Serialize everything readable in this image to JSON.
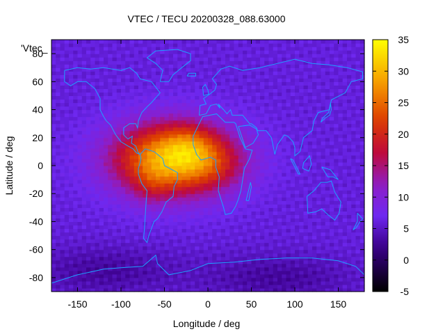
{
  "chart_data": {
    "type": "heatmap",
    "title": "VTEC / TECU 20200328_088.63000",
    "xlabel": "Longitude / deg",
    "ylabel": "Latitude / deg",
    "series_label": "'Vtec_",
    "xlim": [
      -180,
      180
    ],
    "ylim": [
      -90,
      90
    ],
    "x_ticks": [
      -150,
      -100,
      -50,
      0,
      50,
      100,
      150
    ],
    "y_ticks": [
      -80,
      -60,
      -40,
      -20,
      0,
      20,
      40,
      60,
      80
    ],
    "colorbar": {
      "range": [
        -5,
        35
      ],
      "ticks": [
        -5,
        0,
        5,
        10,
        15,
        20,
        25,
        30,
        35
      ],
      "palette": "gnuplot-pm3d-black-purple-red-orange-yellow"
    },
    "grid_resolution": {
      "lon_step": 5,
      "lat_step": 2.5
    },
    "field_model": {
      "background_tecu": 6,
      "anomaly_peaks": [
        {
          "lon": -40,
          "lat": 5,
          "peak_tecu": 25,
          "lon_sigma": 48,
          "lat_sigma": 18
        },
        {
          "lon": -20,
          "lat": 15,
          "peak_tecu": 4,
          "lon_sigma": 20,
          "lat_sigma": 10
        },
        {
          "lon": -65,
          "lat": -15,
          "peak_tecu": 3,
          "lon_sigma": 15,
          "lat_sigma": 10
        },
        {
          "lon": 10,
          "lat": 0,
          "peak_tecu": 3,
          "lon_sigma": 25,
          "lat_sigma": 12
        }
      ],
      "polar_depressions": [
        {
          "lat": -75,
          "lon": -120,
          "depth_tecu": 3
        },
        {
          "lat": -80,
          "lon": 80,
          "depth_tecu": 3
        }
      ]
    },
    "coastline_color": "#1ea0ff",
    "coastlines": [
      {
        "name": "north-america",
        "points": [
          [
            -165,
            68
          ],
          [
            -150,
            70
          ],
          [
            -135,
            69
          ],
          [
            -120,
            70
          ],
          [
            -100,
            68
          ],
          [
            -90,
            70
          ],
          [
            -82,
            66
          ],
          [
            -78,
            62
          ],
          [
            -65,
            60
          ],
          [
            -55,
            52
          ],
          [
            -65,
            45
          ],
          [
            -70,
            42
          ],
          [
            -76,
            38
          ],
          [
            -80,
            32
          ],
          [
            -81,
            27
          ],
          [
            -83,
            30
          ],
          [
            -90,
            30
          ],
          [
            -97,
            27
          ],
          [
            -97,
            22
          ],
          [
            -92,
            19
          ],
          [
            -87,
            21
          ],
          [
            -88,
            16
          ],
          [
            -83,
            14
          ],
          [
            -80,
            9
          ],
          [
            -78,
            8
          ],
          [
            -82,
            9
          ],
          [
            -86,
            12
          ],
          [
            -92,
            14
          ],
          [
            -100,
            17
          ],
          [
            -106,
            22
          ],
          [
            -112,
            29
          ],
          [
            -117,
            32
          ],
          [
            -120,
            35
          ],
          [
            -124,
            40
          ],
          [
            -124,
            48
          ],
          [
            -130,
            55
          ],
          [
            -140,
            60
          ],
          [
            -150,
            60
          ],
          [
            -158,
            57
          ],
          [
            -165,
            60
          ],
          [
            -165,
            68
          ]
        ]
      },
      {
        "name": "south-america",
        "points": [
          [
            -78,
            8
          ],
          [
            -72,
            12
          ],
          [
            -62,
            10
          ],
          [
            -52,
            5
          ],
          [
            -50,
            0
          ],
          [
            -44,
            -2
          ],
          [
            -35,
            -5
          ],
          [
            -35,
            -10
          ],
          [
            -39,
            -15
          ],
          [
            -40,
            -22
          ],
          [
            -48,
            -26
          ],
          [
            -53,
            -33
          ],
          [
            -58,
            -38
          ],
          [
            -62,
            -40
          ],
          [
            -65,
            -45
          ],
          [
            -68,
            -50
          ],
          [
            -70,
            -55
          ],
          [
            -74,
            -52
          ],
          [
            -73,
            -45
          ],
          [
            -72,
            -35
          ],
          [
            -71,
            -25
          ],
          [
            -70,
            -18
          ],
          [
            -76,
            -13
          ],
          [
            -80,
            -6
          ],
          [
            -80,
            -2
          ],
          [
            -78,
            2
          ],
          [
            -77,
            5
          ],
          [
            -78,
            8
          ]
        ]
      },
      {
        "name": "greenland",
        "points": [
          [
            -55,
            60
          ],
          [
            -45,
            60
          ],
          [
            -40,
            65
          ],
          [
            -30,
            70
          ],
          [
            -20,
            75
          ],
          [
            -20,
            80
          ],
          [
            -35,
            83
          ],
          [
            -60,
            82
          ],
          [
            -70,
            77
          ],
          [
            -60,
            73
          ],
          [
            -52,
            68
          ],
          [
            -55,
            60
          ]
        ]
      },
      {
        "name": "eurasia",
        "points": [
          [
            -10,
            36
          ],
          [
            -9,
            43
          ],
          [
            -2,
            44
          ],
          [
            -5,
            48
          ],
          [
            2,
            51
          ],
          [
            8,
            54
          ],
          [
            10,
            58
          ],
          [
            5,
            62
          ],
          [
            15,
            69
          ],
          [
            25,
            71
          ],
          [
            40,
            68
          ],
          [
            60,
            70
          ],
          [
            80,
            73
          ],
          [
            100,
            76
          ],
          [
            120,
            73
          ],
          [
            140,
            72
          ],
          [
            160,
            70
          ],
          [
            178,
            67
          ],
          [
            178,
            62
          ],
          [
            165,
            60
          ],
          [
            158,
            52
          ],
          [
            142,
            47
          ],
          [
            140,
            40
          ],
          [
            127,
            38
          ],
          [
            122,
            32
          ],
          [
            120,
            25
          ],
          [
            110,
            20
          ],
          [
            106,
            10
          ],
          [
            100,
            7
          ],
          [
            100,
            13
          ],
          [
            98,
            17
          ],
          [
            92,
            21
          ],
          [
            88,
            22
          ],
          [
            80,
            15
          ],
          [
            77,
            8
          ],
          [
            73,
            20
          ],
          [
            67,
            25
          ],
          [
            57,
            25
          ],
          [
            56,
            27
          ],
          [
            50,
            30
          ],
          [
            48,
            30
          ],
          [
            40,
            36
          ],
          [
            35,
            36
          ],
          [
            28,
            36
          ],
          [
            26,
            40
          ],
          [
            22,
            37
          ],
          [
            18,
            40
          ],
          [
            12,
            44
          ],
          [
            14,
            41
          ],
          [
            10,
            44
          ],
          [
            3,
            43
          ],
          [
            -2,
            37
          ],
          [
            -10,
            36
          ]
        ]
      },
      {
        "name": "arabia",
        "points": [
          [
            35,
            28
          ],
          [
            43,
            13
          ],
          [
            52,
            16
          ],
          [
            58,
            22
          ],
          [
            56,
            26
          ],
          [
            48,
            29
          ],
          [
            35,
            28
          ]
        ]
      },
      {
        "name": "africa",
        "points": [
          [
            -17,
            15
          ],
          [
            -17,
            21
          ],
          [
            -10,
            30
          ],
          [
            -6,
            35
          ],
          [
            10,
            37
          ],
          [
            20,
            31
          ],
          [
            30,
            31
          ],
          [
            32,
            30
          ],
          [
            37,
            20
          ],
          [
            43,
            12
          ],
          [
            51,
            11
          ],
          [
            48,
            5
          ],
          [
            42,
            -2
          ],
          [
            40,
            -10
          ],
          [
            38,
            -18
          ],
          [
            35,
            -24
          ],
          [
            32,
            -29
          ],
          [
            27,
            -34
          ],
          [
            20,
            -35
          ],
          [
            18,
            -30
          ],
          [
            12,
            -18
          ],
          [
            13,
            -8
          ],
          [
            9,
            -1
          ],
          [
            9,
            4
          ],
          [
            3,
            6
          ],
          [
            -8,
            4
          ],
          [
            -13,
            8
          ],
          [
            -17,
            15
          ]
        ]
      },
      {
        "name": "madagascar",
        "points": [
          [
            44,
            -25
          ],
          [
            49,
            -12
          ],
          [
            50,
            -15
          ],
          [
            47,
            -25
          ],
          [
            44,
            -25
          ]
        ]
      },
      {
        "name": "australia",
        "points": [
          [
            114,
            -22
          ],
          [
            122,
            -18
          ],
          [
            130,
            -12
          ],
          [
            137,
            -12
          ],
          [
            142,
            -11
          ],
          [
            146,
            -19
          ],
          [
            153,
            -26
          ],
          [
            151,
            -34
          ],
          [
            146,
            -39
          ],
          [
            138,
            -35
          ],
          [
            131,
            -31
          ],
          [
            124,
            -33
          ],
          [
            115,
            -34
          ],
          [
            114,
            -22
          ]
        ]
      },
      {
        "name": "new-zealand",
        "points": [
          [
            172,
            -34
          ],
          [
            178,
            -38
          ],
          [
            174,
            -41
          ],
          [
            171,
            -44
          ],
          [
            167,
            -46
          ],
          [
            172,
            -40
          ],
          [
            172,
            -34
          ]
        ]
      },
      {
        "name": "uk",
        "points": [
          [
            -5,
            50
          ],
          [
            1,
            51
          ],
          [
            0,
            54
          ],
          [
            -3,
            58
          ],
          [
            -6,
            56
          ],
          [
            -5,
            50
          ]
        ]
      },
      {
        "name": "japan",
        "points": [
          [
            130,
            31
          ],
          [
            135,
            34
          ],
          [
            140,
            36
          ],
          [
            142,
            40
          ],
          [
            141,
            45
          ],
          [
            139,
            38
          ],
          [
            132,
            34
          ],
          [
            130,
            31
          ]
        ]
      },
      {
        "name": "borneo",
        "points": [
          [
            109,
            -2
          ],
          [
            110,
            2
          ],
          [
            117,
            7
          ],
          [
            119,
            1
          ],
          [
            116,
            -4
          ],
          [
            109,
            -2
          ]
        ]
      },
      {
        "name": "sumatra",
        "points": [
          [
            95,
            5
          ],
          [
            98,
            4
          ],
          [
            106,
            -6
          ],
          [
            104,
            -6
          ],
          [
            95,
            5
          ]
        ]
      },
      {
        "name": "new-guinea",
        "points": [
          [
            131,
            -1
          ],
          [
            141,
            -3
          ],
          [
            150,
            -10
          ],
          [
            144,
            -8
          ],
          [
            138,
            -8
          ],
          [
            131,
            -1
          ]
        ]
      },
      {
        "name": "antarctica",
        "points": [
          [
            -180,
            -84
          ],
          [
            -150,
            -78
          ],
          [
            -120,
            -74
          ],
          [
            -100,
            -73
          ],
          [
            -75,
            -72
          ],
          [
            -60,
            -64
          ],
          [
            -58,
            -70
          ],
          [
            -45,
            -78
          ],
          [
            -20,
            -75
          ],
          [
            0,
            -70
          ],
          [
            30,
            -69
          ],
          [
            60,
            -67
          ],
          [
            90,
            -66
          ],
          [
            120,
            -66
          ],
          [
            150,
            -68
          ],
          [
            170,
            -72
          ],
          [
            180,
            -78
          ]
        ]
      },
      {
        "name": "iceland",
        "points": [
          [
            -24,
            64
          ],
          [
            -14,
            64
          ],
          [
            -14,
            66
          ],
          [
            -22,
            66
          ],
          [
            -24,
            64
          ]
        ]
      }
    ]
  }
}
